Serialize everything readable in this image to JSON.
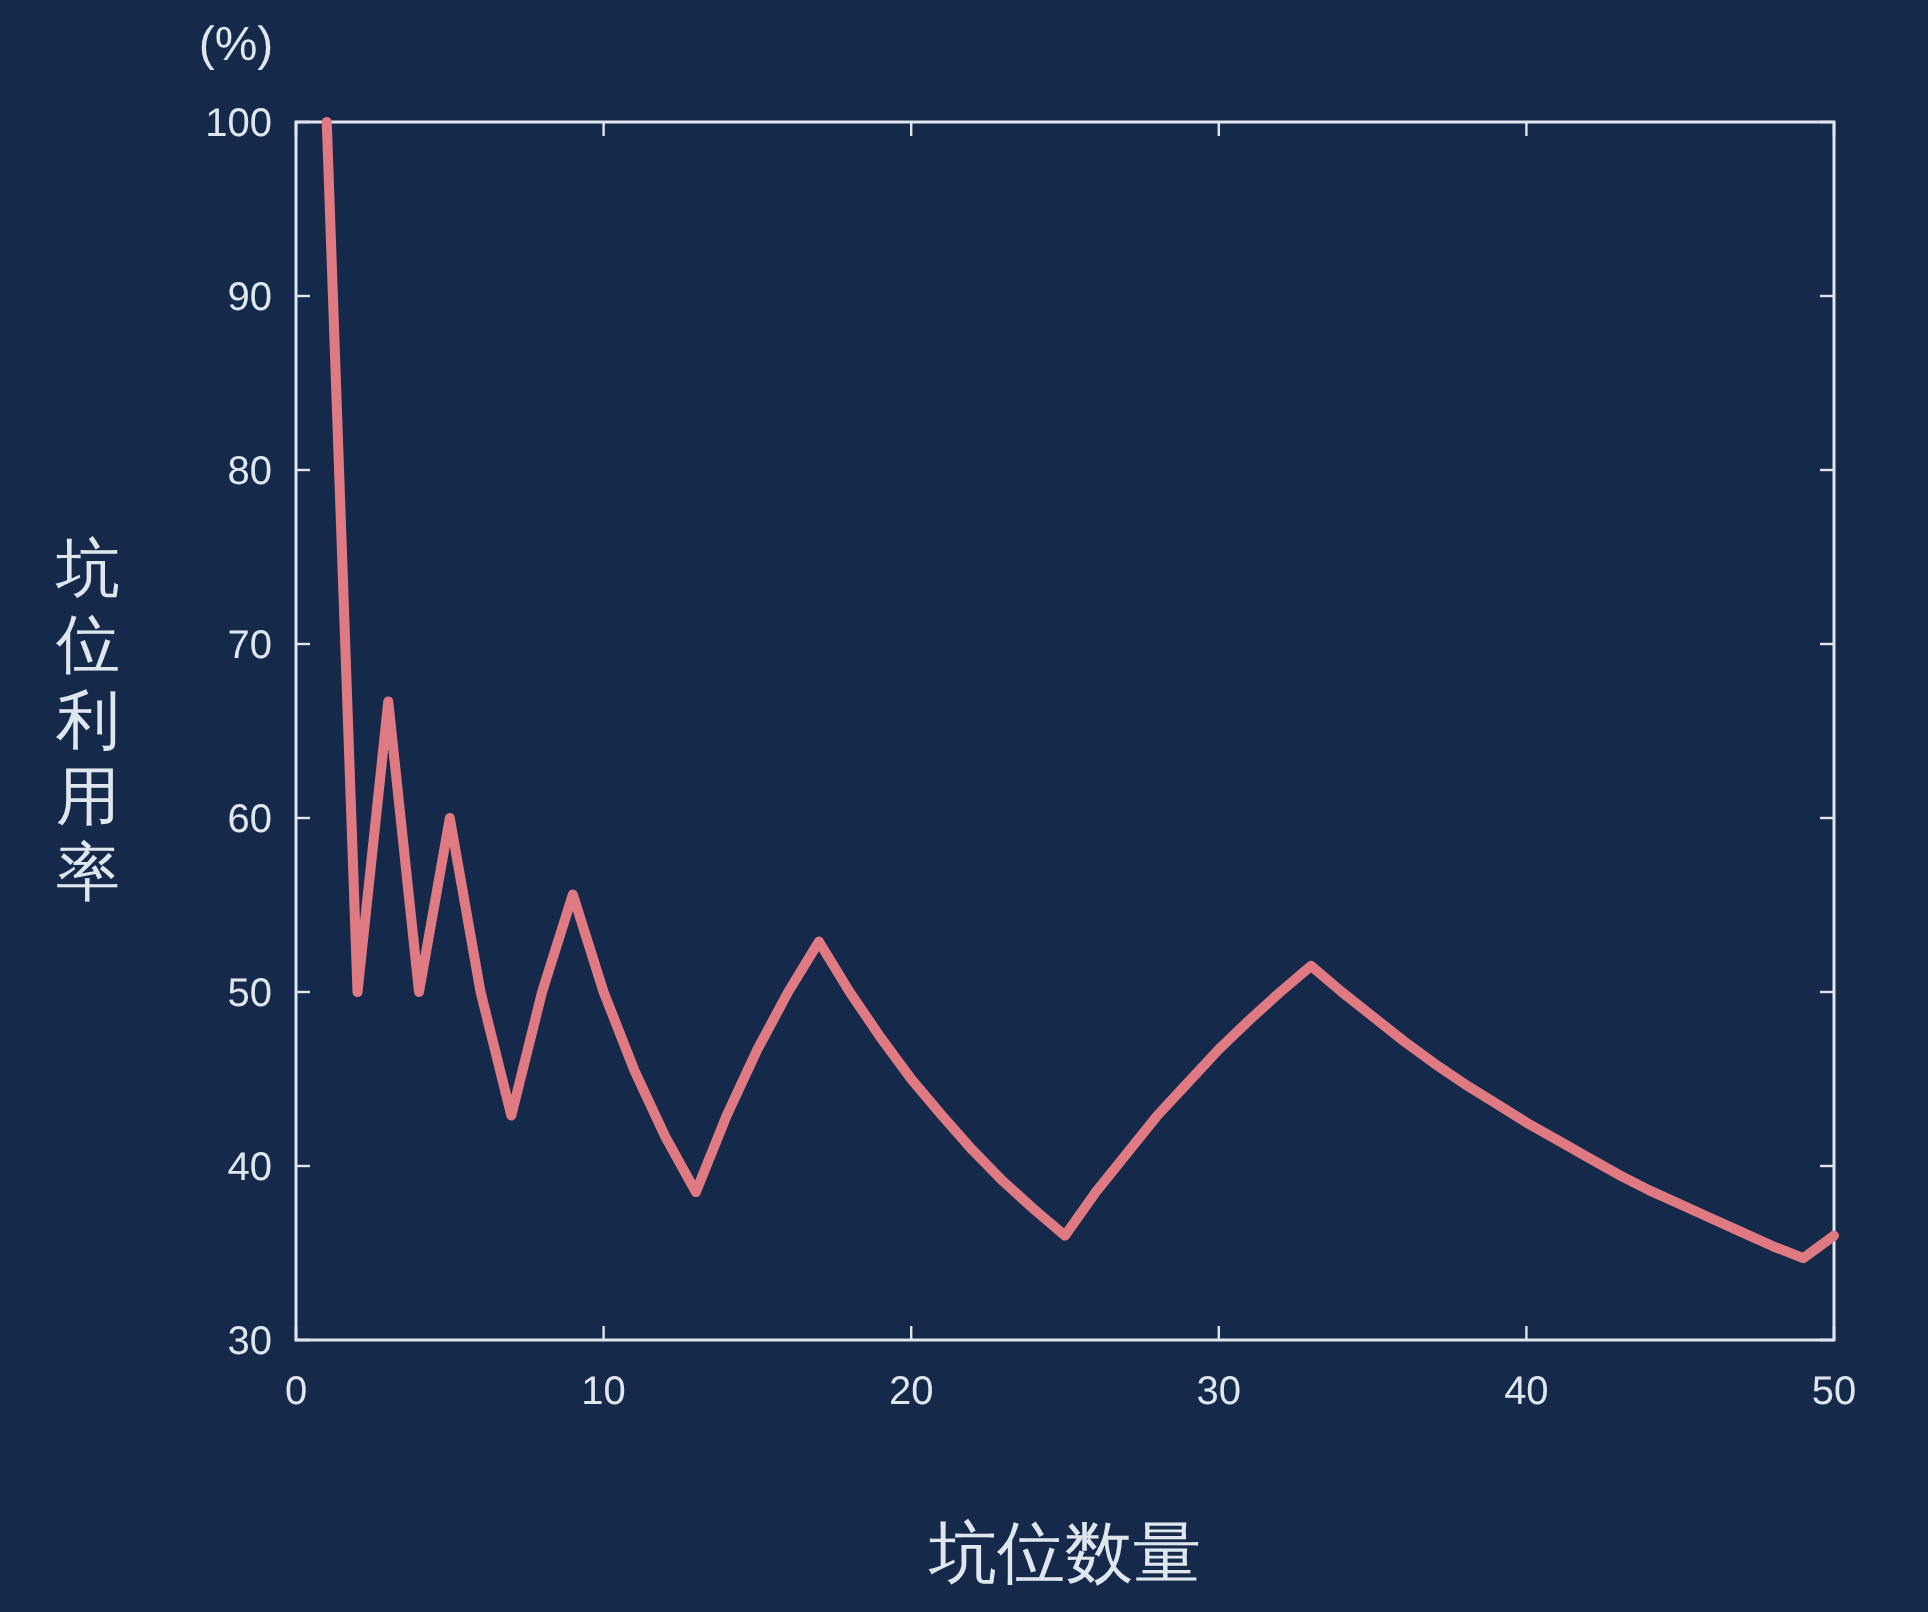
{
  "chart_data": {
    "type": "line",
    "xlabel": "坑位数量",
    "ylabel": "坑位利用率",
    "annotations": [
      "(%)"
    ],
    "x": [
      1,
      2,
      3,
      4,
      5,
      6,
      7,
      8,
      9,
      10,
      11,
      12,
      13,
      14,
      15,
      16,
      17,
      18,
      19,
      20,
      21,
      22,
      23,
      24,
      25,
      26,
      27,
      28,
      29,
      30,
      31,
      32,
      33,
      34,
      35,
      36,
      37,
      38,
      39,
      40,
      41,
      42,
      43,
      44,
      45,
      46,
      47,
      48,
      49,
      50
    ],
    "series": [
      {
        "color": "#e07a82",
        "values": [
          100,
          50,
          66.7,
          50,
          60,
          50,
          42.9,
          50,
          55.6,
          50,
          45.5,
          41.7,
          38.5,
          42.9,
          46.7,
          50,
          52.9,
          50,
          47.4,
          45,
          42.9,
          40.9,
          39.1,
          37.5,
          36,
          38.5,
          40.7,
          42.9,
          44.8,
          46.7,
          48.4,
          50,
          51.5,
          50,
          48.6,
          47.2,
          45.9,
          44.7,
          43.6,
          42.5,
          41.5,
          40.5,
          39.5,
          38.6,
          37.8,
          37,
          36.2,
          35.4,
          34.7,
          36
        ]
      }
    ],
    "xlim": [
      0,
      50
    ],
    "ylim": [
      30,
      100
    ],
    "xticks": [
      0,
      10,
      20,
      30,
      40,
      50
    ],
    "yticks": [
      30,
      40,
      50,
      60,
      70,
      80,
      90,
      100
    ]
  }
}
